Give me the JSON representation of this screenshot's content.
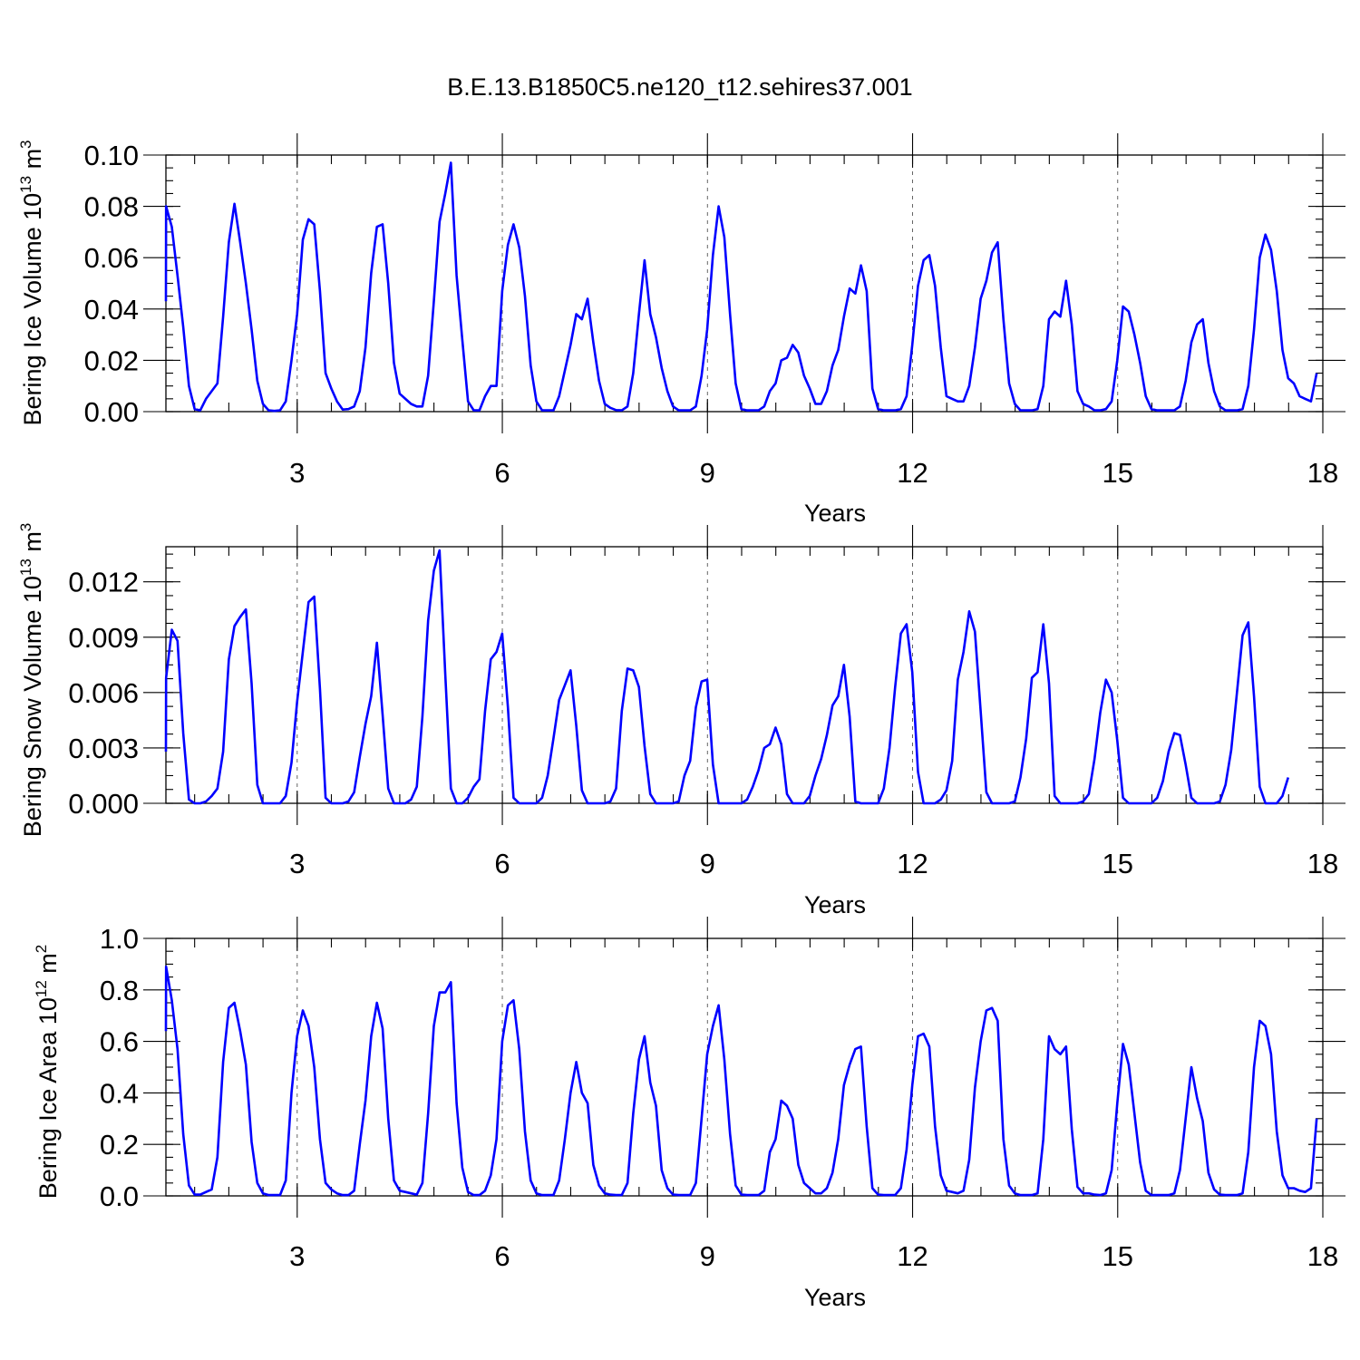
{
  "title": "B.E.13.B1850C5.ne120_t12.sehires37.001",
  "chart_data": [
    {
      "type": "line",
      "ylabel": "Bering Ice Volume 10",
      "ylabel_exp": "13",
      "ylabel_unit": " m",
      "ylabel_unit_exp": "3",
      "xlabel": "Years",
      "xlim": [
        1.08,
        18.0
      ],
      "ylim": [
        0.0,
        0.1
      ],
      "xticks": [
        3,
        6,
        9,
        12,
        15,
        18
      ],
      "xtick_labels": [
        "3",
        "6",
        "9",
        "12",
        "15",
        "18"
      ],
      "yticks": [
        0.0,
        0.02,
        0.04,
        0.06,
        0.08,
        0.1
      ],
      "ytick_labels": [
        "0.00",
        "0.02",
        "0.04",
        "0.06",
        "0.08",
        "0.10"
      ],
      "y_minor_step": 0.005,
      "dashed_vgrid": [
        3,
        6,
        9,
        12,
        15
      ],
      "series": [
        {
          "color": "#0000ff",
          "x_start": 1.0,
          "x_step": 0.0833,
          "values": [
            0.043,
            0.08,
            0.072,
            0.053,
            0.033,
            0.01,
            0.001,
            0.0005,
            0.005,
            0.008,
            0.011,
            0.037,
            0.066,
            0.081,
            0.066,
            0.05,
            0.032,
            0.012,
            0.003,
            0.0005,
            0.0003,
            0.0005,
            0.004,
            0.02,
            0.038,
            0.067,
            0.075,
            0.073,
            0.047,
            0.015,
            0.009,
            0.004,
            0.0008,
            0.001,
            0.002,
            0.008,
            0.025,
            0.054,
            0.072,
            0.073,
            0.05,
            0.019,
            0.007,
            0.005,
            0.003,
            0.002,
            0.002,
            0.014,
            0.043,
            0.074,
            0.085,
            0.097,
            0.053,
            0.028,
            0.004,
            0.0005,
            0.0005,
            0.006,
            0.01,
            0.01,
            0.047,
            0.065,
            0.073,
            0.064,
            0.045,
            0.018,
            0.004,
            0.0005,
            0.0005,
            0.0005,
            0.006,
            0.016,
            0.026,
            0.038,
            0.036,
            0.044,
            0.027,
            0.012,
            0.003,
            0.0015,
            0.0006,
            0.0005,
            0.002,
            0.015,
            0.038,
            0.059,
            0.038,
            0.029,
            0.017,
            0.008,
            0.002,
            0.0005,
            0.0005,
            0.0005,
            0.002,
            0.014,
            0.032,
            0.061,
            0.08,
            0.068,
            0.038,
            0.011,
            0.001,
            0.0005,
            0.0005,
            0.0005,
            0.002,
            0.008,
            0.011,
            0.02,
            0.021,
            0.026,
            0.023,
            0.014,
            0.009,
            0.003,
            0.003,
            0.008,
            0.018,
            0.024,
            0.037,
            0.048,
            0.046,
            0.057,
            0.047,
            0.009,
            0.001,
            0.0005,
            0.0005,
            0.0005,
            0.001,
            0.006,
            0.026,
            0.049,
            0.059,
            0.061,
            0.049,
            0.025,
            0.006,
            0.005,
            0.004,
            0.004,
            0.01,
            0.025,
            0.044,
            0.051,
            0.062,
            0.066,
            0.036,
            0.011,
            0.003,
            0.0005,
            0.0005,
            0.0005,
            0.001,
            0.01,
            0.036,
            0.039,
            0.037,
            0.051,
            0.034,
            0.008,
            0.003,
            0.002,
            0.0005,
            0.0005,
            0.001,
            0.004,
            0.02,
            0.041,
            0.039,
            0.03,
            0.019,
            0.006,
            0.001,
            0.0005,
            0.0005,
            0.0005,
            0.0005,
            0.002,
            0.012,
            0.027,
            0.034,
            0.036,
            0.019,
            0.008,
            0.002,
            0.0005,
            0.0005,
            0.0005,
            0.001,
            0.01,
            0.032,
            0.06,
            0.069,
            0.063,
            0.047,
            0.024,
            0.013,
            0.011,
            0.006,
            0.005,
            0.004,
            0.015
          ]
        }
      ]
    },
    {
      "type": "line",
      "ylabel": "Bering Snow Volume 10",
      "ylabel_exp": "13",
      "ylabel_unit": " m",
      "ylabel_unit_exp": "3",
      "xlabel": "Years",
      "xlim": [
        1.08,
        18.0
      ],
      "ylim": [
        0.0,
        0.0139
      ],
      "xticks": [
        3,
        6,
        9,
        12,
        15,
        18
      ],
      "xtick_labels": [
        "3",
        "6",
        "9",
        "12",
        "15",
        "18"
      ],
      "yticks": [
        0.0,
        0.003,
        0.006,
        0.009,
        0.012
      ],
      "ytick_labels": [
        "0.000",
        "0.003",
        "0.006",
        "0.009",
        "0.012"
      ],
      "y_minor_step": 0.00075,
      "dashed_vgrid": [
        3,
        6,
        9,
        12,
        15
      ],
      "series": [
        {
          "color": "#0000ff",
          "x_start": 1.0,
          "x_step": 0.0833,
          "values": [
            0.0028,
            0.0068,
            0.0094,
            0.0088,
            0.0038,
            0.0002,
            0.0,
            0.0,
            0.0001,
            0.0004,
            0.0008,
            0.0028,
            0.0078,
            0.0096,
            0.0101,
            0.0105,
            0.0065,
            0.001,
            0.0,
            0.0,
            0.0,
            0.0,
            0.0004,
            0.0022,
            0.0055,
            0.0082,
            0.0109,
            0.0112,
            0.0062,
            0.0003,
            0.0,
            0.0,
            0.0,
            0.0001,
            0.0006,
            0.0025,
            0.0043,
            0.0058,
            0.0087,
            0.0048,
            0.0008,
            0.0,
            0.0,
            0.0,
            0.0002,
            0.0009,
            0.0047,
            0.0099,
            0.0126,
            0.0137,
            0.007,
            0.0008,
            0.0,
            0.0,
            0.0003,
            0.0009,
            0.0013,
            0.005,
            0.0078,
            0.0082,
            0.0092,
            0.0052,
            0.0003,
            0.0,
            0.0,
            0.0,
            0.0,
            0.0003,
            0.0015,
            0.0035,
            0.0056,
            0.0064,
            0.0072,
            0.0042,
            0.0007,
            0.0,
            0.0,
            0.0,
            0.0,
            0.0001,
            0.0008,
            0.005,
            0.0073,
            0.0072,
            0.0063,
            0.0031,
            0.0005,
            0.0,
            0.0,
            0.0,
            0.0,
            0.0001,
            0.0015,
            0.0023,
            0.0052,
            0.0066,
            0.0067,
            0.0021,
            0.0,
            0.0,
            0.0,
            0.0,
            0.0,
            0.0002,
            0.0009,
            0.0018,
            0.003,
            0.0032,
            0.0041,
            0.0032,
            0.0005,
            0.0,
            0.0,
            0.0,
            0.0004,
            0.0015,
            0.0024,
            0.0037,
            0.0053,
            0.0058,
            0.0075,
            0.0047,
            0.0001,
            0.0,
            0.0,
            0.0,
            0.0,
            0.0008,
            0.003,
            0.0063,
            0.0092,
            0.0097,
            0.0071,
            0.0017,
            0.0,
            0.0,
            0.0,
            0.0002,
            0.0007,
            0.0023,
            0.0067,
            0.0082,
            0.0104,
            0.0093,
            0.005,
            0.0006,
            0.0,
            0.0,
            0.0,
            0.0,
            0.0001,
            0.0014,
            0.0035,
            0.0068,
            0.0071,
            0.0097,
            0.0065,
            0.0004,
            0.0,
            0.0,
            0.0,
            0.0,
            0.0001,
            0.0005,
            0.0024,
            0.0049,
            0.0067,
            0.006,
            0.0034,
            0.0003,
            0.0,
            0.0,
            0.0,
            0.0,
            0.0,
            0.0003,
            0.0012,
            0.0028,
            0.0038,
            0.0037,
            0.0021,
            0.0003,
            0.0,
            0.0,
            0.0,
            0.0,
            0.0001,
            0.001,
            0.0029,
            0.006,
            0.0091,
            0.0098,
            0.0058,
            0.0009,
            0.0,
            0.0,
            0.0,
            0.0004,
            0.0014
          ]
        }
      ]
    },
    {
      "type": "line",
      "ylabel": "Bering Ice Area 10",
      "ylabel_exp": "12",
      "ylabel_unit": " m",
      "ylabel_unit_exp": "2",
      "xlabel": "Years",
      "xlim": [
        1.08,
        18.0
      ],
      "ylim": [
        0.0,
        1.0
      ],
      "xticks": [
        3,
        6,
        9,
        12,
        15,
        18
      ],
      "xtick_labels": [
        "3",
        "6",
        "9",
        "12",
        "15",
        "18"
      ],
      "yticks": [
        0.0,
        0.2,
        0.4,
        0.6,
        0.8,
        1.0
      ],
      "ytick_labels": [
        "0.0",
        "0.2",
        "0.4",
        "0.6",
        "0.8",
        "1.0"
      ],
      "y_minor_step": 0.05,
      "dashed_vgrid": [
        3,
        6,
        9,
        12,
        15
      ],
      "series": [
        {
          "color": "#0000ff",
          "x_start": 1.0,
          "x_step": 0.0833,
          "values": [
            0.64,
            0.89,
            0.76,
            0.57,
            0.24,
            0.04,
            0.005,
            0.005,
            0.015,
            0.025,
            0.15,
            0.52,
            0.73,
            0.75,
            0.64,
            0.51,
            0.21,
            0.05,
            0.01,
            0.003,
            0.003,
            0.003,
            0.06,
            0.4,
            0.62,
            0.72,
            0.66,
            0.5,
            0.22,
            0.05,
            0.025,
            0.01,
            0.003,
            0.003,
            0.02,
            0.2,
            0.37,
            0.62,
            0.75,
            0.65,
            0.3,
            0.06,
            0.02,
            0.015,
            0.01,
            0.005,
            0.05,
            0.32,
            0.66,
            0.79,
            0.79,
            0.83,
            0.36,
            0.11,
            0.015,
            0.003,
            0.003,
            0.02,
            0.08,
            0.22,
            0.6,
            0.74,
            0.76,
            0.57,
            0.25,
            0.06,
            0.01,
            0.003,
            0.003,
            0.003,
            0.06,
            0.22,
            0.4,
            0.52,
            0.4,
            0.36,
            0.12,
            0.04,
            0.01,
            0.005,
            0.003,
            0.003,
            0.05,
            0.32,
            0.53,
            0.62,
            0.44,
            0.35,
            0.1,
            0.03,
            0.005,
            0.003,
            0.003,
            0.003,
            0.05,
            0.3,
            0.55,
            0.66,
            0.74,
            0.53,
            0.24,
            0.04,
            0.005,
            0.003,
            0.003,
            0.003,
            0.02,
            0.17,
            0.22,
            0.37,
            0.35,
            0.3,
            0.12,
            0.05,
            0.03,
            0.01,
            0.01,
            0.03,
            0.09,
            0.22,
            0.43,
            0.51,
            0.57,
            0.58,
            0.27,
            0.03,
            0.005,
            0.003,
            0.003,
            0.003,
            0.03,
            0.18,
            0.43,
            0.62,
            0.63,
            0.58,
            0.27,
            0.08,
            0.02,
            0.015,
            0.01,
            0.02,
            0.14,
            0.42,
            0.6,
            0.72,
            0.73,
            0.68,
            0.22,
            0.04,
            0.01,
            0.003,
            0.003,
            0.003,
            0.01,
            0.22,
            0.62,
            0.57,
            0.55,
            0.58,
            0.26,
            0.035,
            0.01,
            0.01,
            0.005,
            0.003,
            0.01,
            0.1,
            0.36,
            0.59,
            0.51,
            0.32,
            0.13,
            0.02,
            0.003,
            0.003,
            0.003,
            0.003,
            0.01,
            0.1,
            0.3,
            0.5,
            0.38,
            0.29,
            0.09,
            0.025,
            0.005,
            0.003,
            0.003,
            0.003,
            0.01,
            0.17,
            0.5,
            0.68,
            0.66,
            0.55,
            0.25,
            0.08,
            0.03,
            0.03,
            0.02,
            0.015,
            0.03,
            0.3
          ]
        }
      ]
    }
  ]
}
